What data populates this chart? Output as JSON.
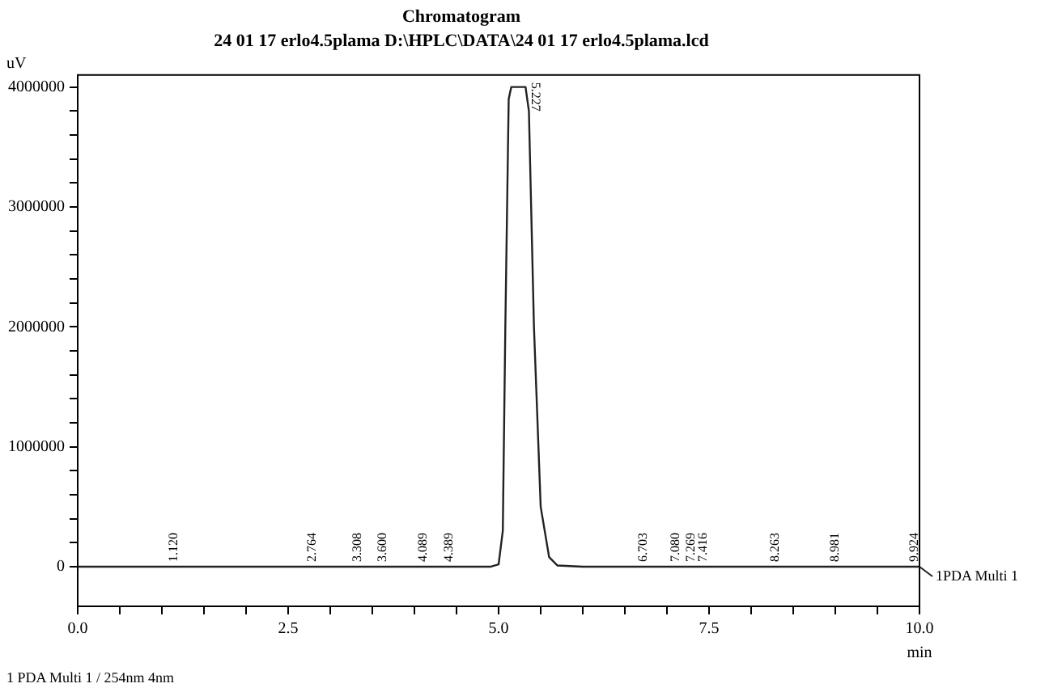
{
  "chart_data": {
    "type": "line",
    "title": "Chromatogram",
    "subtitle": "24 01 17 erlo4.5plama D:\\HPLC\\DATA\\24 01 17 erlo4.5plama.lcd",
    "xlabel": "min",
    "ylabel": "uV",
    "series": [
      {
        "name": "1PDA Multi 1",
        "color": "#222222",
        "x": [
          0,
          1,
          2,
          3,
          4,
          4.9,
          5.0,
          5.05,
          5.08,
          5.12,
          5.15,
          5.32,
          5.36,
          5.42,
          5.5,
          5.6,
          5.7,
          6,
          7,
          8,
          9,
          10
        ],
        "values": [
          0,
          0,
          0,
          0,
          0,
          0,
          20000,
          300000,
          2000000,
          3900000,
          4000000,
          4000000,
          3800000,
          2000000,
          500000,
          80000,
          10000,
          0,
          0,
          0,
          0,
          0
        ]
      }
    ],
    "xlim": [
      0,
      10
    ],
    "ylim": [
      -330000,
      4100000
    ],
    "xticks": [
      {
        "value": 0,
        "label": "0.0"
      },
      {
        "value": 0.5,
        "label": null
      },
      {
        "value": 1,
        "label": null
      },
      {
        "value": 1.5,
        "label": null
      },
      {
        "value": 2,
        "label": null
      },
      {
        "value": 2.5,
        "label": "2.5"
      },
      {
        "value": 3,
        "label": null
      },
      {
        "value": 3.5,
        "label": null
      },
      {
        "value": 4,
        "label": null
      },
      {
        "value": 4.5,
        "label": null
      },
      {
        "value": 5,
        "label": "5.0"
      },
      {
        "value": 5.5,
        "label": null
      },
      {
        "value": 6,
        "label": null
      },
      {
        "value": 6.5,
        "label": null
      },
      {
        "value": 7,
        "label": null
      },
      {
        "value": 7.5,
        "label": "7.5"
      },
      {
        "value": 8,
        "label": null
      },
      {
        "value": 8.5,
        "label": null
      },
      {
        "value": 9,
        "label": null
      },
      {
        "value": 9.5,
        "label": null
      },
      {
        "value": 10,
        "label": "10.0"
      }
    ],
    "yticks": [
      0,
      {
        "value": 200000,
        "label": null
      },
      {
        "value": 400000,
        "label": null
      },
      {
        "value": 600000,
        "label": null
      },
      {
        "value": 800000,
        "label": null
      },
      1000000,
      {
        "value": 1200000,
        "label": null
      },
      {
        "value": 1400000,
        "label": null
      },
      {
        "value": 1600000,
        "label": null
      },
      {
        "value": 1800000,
        "label": null
      },
      2000000,
      {
        "value": 2200000,
        "label": null
      },
      {
        "value": 2400000,
        "label": null
      },
      {
        "value": 2600000,
        "label": null
      },
      {
        "value": 2800000,
        "label": null
      },
      3000000,
      {
        "value": 3200000,
        "label": null
      },
      {
        "value": 3400000,
        "label": null
      },
      {
        "value": 3600000,
        "label": null
      },
      {
        "value": 3800000,
        "label": null
      },
      4000000
    ],
    "marker": "none",
    "line_style": "solid",
    "legend": "right",
    "annotations": [
      {
        "text": "1.120",
        "x": 1.12,
        "y": 0
      },
      {
        "text": "2.764",
        "x": 2.764,
        "y": 0
      },
      {
        "text": "3.308",
        "x": 3.308,
        "y": 0
      },
      {
        "text": "3.600",
        "x": 3.6,
        "y": 0
      },
      {
        "text": "4.089",
        "x": 4.089,
        "y": 0
      },
      {
        "text": "4.389",
        "x": 4.389,
        "y": 0
      },
      {
        "text": "5.227",
        "x": 5.227,
        "y": 4000000
      },
      {
        "text": "6.703",
        "x": 6.703,
        "y": 0
      },
      {
        "text": "7.080",
        "x": 7.08,
        "y": 0
      },
      {
        "text": "7.269",
        "x": 7.269,
        "y": 0
      },
      {
        "text": "7.416",
        "x": 7.416,
        "y": 0
      },
      {
        "text": "8.263",
        "x": 8.263,
        "y": 0
      },
      {
        "text": "8.981",
        "x": 8.981,
        "y": 0
      },
      {
        "text": "9.924",
        "x": 9.924,
        "y": 0
      },
      "1 PDA Multi 1 / 254nm 4nm"
    ]
  }
}
